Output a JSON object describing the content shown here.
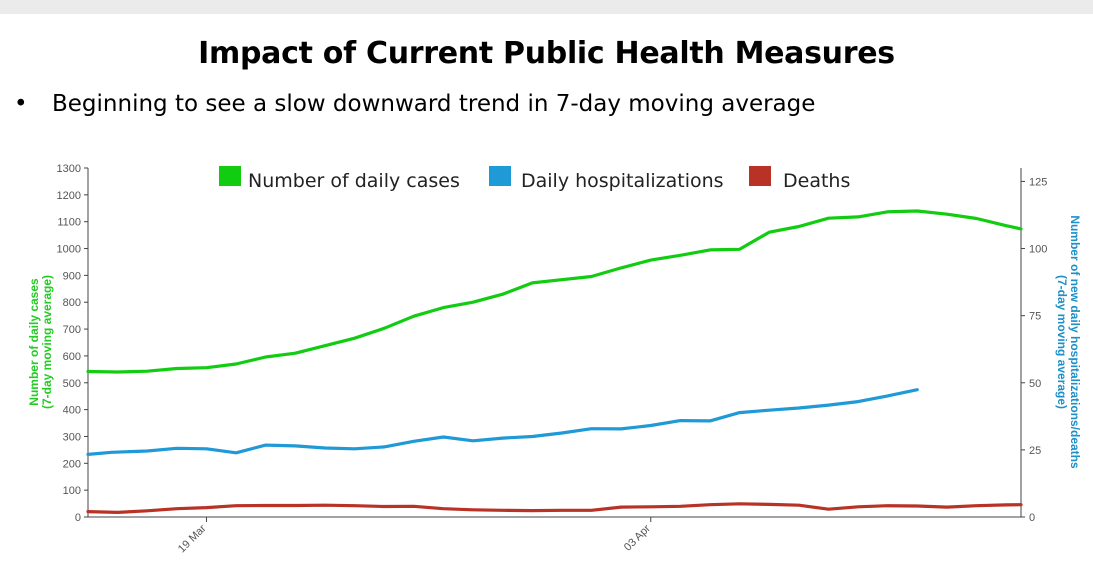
{
  "slide": {
    "title": "Impact of Current Public Health Measures",
    "bullet": "•",
    "bullet_text": "Beginning to see a slow downward trend in 7-day moving average"
  },
  "chart_data": {
    "type": "line",
    "x_tick_labels": [
      "19 Mar",
      "03 Apr"
    ],
    "y_left": {
      "label_line1": "Number of daily cases",
      "label_line2": "(7-day moving average)",
      "range": [
        0,
        1300
      ],
      "ticks": [
        0,
        100,
        200,
        300,
        400,
        500,
        600,
        700,
        800,
        900,
        1000,
        1100,
        1200,
        1300
      ],
      "color": "#22cc22"
    },
    "y_right": {
      "label_line1": "Number of new daily hospitalizations/deaths",
      "label_line2": "(7-day moving average)",
      "range": [
        0,
        130
      ],
      "ticks": [
        0,
        25,
        50,
        75,
        100,
        125
      ],
      "color": "#1e90c8"
    },
    "grid": false,
    "legend_position": "top",
    "x_range": [
      0,
      31.5
    ],
    "x_tick_positions": [
      4,
      19
    ],
    "series": [
      {
        "name": "Number of daily cases",
        "axis": "left",
        "color": "#11cc11",
        "x": [
          0,
          1,
          2,
          3,
          4,
          5,
          6,
          7,
          8,
          9,
          10,
          11,
          12,
          13,
          14,
          15,
          16,
          17,
          18,
          19,
          20,
          21,
          22,
          23,
          24,
          25,
          26,
          27,
          28,
          29,
          30,
          31,
          31.5
        ],
        "values": [
          542,
          540,
          543,
          553,
          556,
          570,
          596,
          610,
          638,
          666,
          703,
          748,
          780,
          800,
          830,
          872,
          884,
          896,
          928,
          957,
          975,
          995,
          997,
          1061,
          1082,
          1113,
          1118,
          1137,
          1140,
          1128,
          1112,
          1085,
          1073
        ]
      },
      {
        "name": "Daily hospitalizations",
        "axis": "right",
        "color": "#1f9ad6",
        "x": [
          0,
          0.8,
          2,
          3,
          4,
          5,
          6,
          7,
          8,
          9,
          10,
          11,
          12,
          13,
          14,
          15,
          16,
          17,
          18,
          19,
          20,
          21,
          22,
          23,
          24,
          25,
          26,
          27,
          28
        ],
        "values": [
          23.3,
          24.1,
          24.6,
          25.6,
          25.4,
          23.9,
          26.8,
          26.5,
          25.7,
          25.4,
          26.1,
          28.2,
          29.8,
          28.4,
          29.4,
          30.0,
          31.3,
          32.9,
          32.8,
          34.1,
          35.9,
          35.8,
          38.9,
          39.8,
          40.6,
          41.7,
          43.0,
          45.1,
          47.4
        ]
      },
      {
        "name": "Deaths",
        "axis": "right",
        "color": "#b83226",
        "x": [
          0,
          1,
          2,
          3,
          4,
          5,
          6,
          7,
          8,
          9,
          10,
          11,
          12,
          13,
          14,
          15,
          16,
          17,
          18,
          19,
          20,
          21,
          22,
          23,
          24,
          25,
          26,
          27,
          28,
          29,
          30,
          31,
          31.5
        ],
        "values": [
          2.0,
          1.7,
          2.3,
          3.1,
          3.5,
          4.2,
          4.3,
          4.3,
          4.4,
          4.2,
          3.9,
          4.0,
          3.1,
          2.7,
          2.5,
          2.4,
          2.5,
          2.5,
          3.7,
          3.8,
          4.0,
          4.6,
          4.9,
          4.7,
          4.4,
          2.9,
          3.8,
          4.2,
          4.1,
          3.7,
          4.2,
          4.5,
          4.6
        ]
      }
    ]
  }
}
